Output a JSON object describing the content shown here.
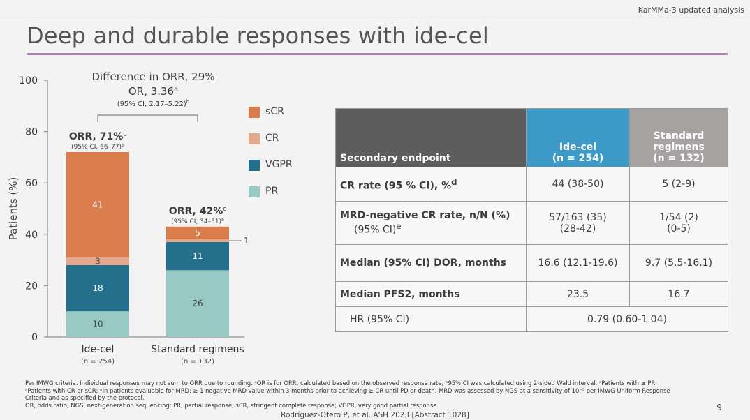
{
  "header": {
    "top_note": "KarMMa-3 updated analysis",
    "title": "Deep and durable responses with ide-cel"
  },
  "chart_data": {
    "type": "bar",
    "stacked": true,
    "categories": [
      "Ide-cel",
      "Standard regimens"
    ],
    "category_sublabels": [
      "(n = 254)",
      "(n = 132)"
    ],
    "series": [
      {
        "name": "PR",
        "values": [
          10,
          26
        ],
        "color": "#98c9c4"
      },
      {
        "name": "VGPR",
        "values": [
          18,
          11
        ],
        "color": "#236f8c"
      },
      {
        "name": "CR",
        "values": [
          3,
          1
        ],
        "color": "#e6a88b"
      },
      {
        "name": "sCR",
        "values": [
          41,
          5
        ],
        "color": "#d97d4c"
      }
    ],
    "legend_order": [
      "sCR",
      "CR",
      "VGPR",
      "PR"
    ],
    "legend_placement": "right",
    "totals": [
      72,
      43
    ],
    "ylabel": "Patients (%)",
    "ylim": [
      0,
      100
    ],
    "yticks": [
      0,
      20,
      40,
      60,
      80,
      100
    ],
    "grid": false,
    "bar_labels": [
      {
        "main": "ORR, 71%",
        "sup": "c",
        "ci": "(95% CI, 66–77)",
        "ci_sup": "b"
      },
      {
        "main": "ORR, 42%",
        "sup": "c",
        "ci": "(95% CI, 34–51)",
        "ci_sup": "b"
      }
    ],
    "comparison": {
      "line1": "Difference in ORR, 29%",
      "line2": "OR, 3.36",
      "line2_sup": "a",
      "line3": "(95% CI, 2.17–5.22)",
      "line3_sup": "b"
    }
  },
  "table": {
    "headers": [
      "Secondary endpoint",
      "Ide-cel",
      "(n = 254)",
      "Standard",
      "regimens",
      "(n = 132)"
    ],
    "rows": [
      {
        "label": "CR rate (95 % CI), %",
        "label_sup": "d",
        "sub": "",
        "sub_sup": "",
        "ide": [
          "44 (38-50)"
        ],
        "std": [
          "5 (2-9)"
        ]
      },
      {
        "label": "MRD-negative CR rate, n/N (%)",
        "label_sup": "",
        "sub": "(95% CI)",
        "sub_sup": "e",
        "ide": [
          "57/163 (35)",
          "(28-42)"
        ],
        "std": [
          "1/54 (2)",
          "(0-5)"
        ]
      },
      {
        "label": "Median (95% CI) DOR, months",
        "label_sup": "",
        "sub": "",
        "sub_sup": "",
        "ide": [
          "16.6 (12.1-19.6)"
        ],
        "std": [
          "9.7 (5.5-16.1)"
        ]
      },
      {
        "label": "Median PFS2, months",
        "label_sup": "",
        "sub": "",
        "sub_sup": "",
        "ide": [
          "23.5"
        ],
        "std": [
          "16.7"
        ]
      }
    ],
    "hr_label": "HR (95% CI)",
    "hr_value": "0.79 (0.60-1.04)"
  },
  "footnotes": [
    "Per IMWG criteria. Individual responses may not sum to ORR due to rounding. ᵃOR is for ORR, calculated based on the observed response rate; ᵇ95% CI was calculated using 2-sided Wald interval; ᶜPatients with ≥ PR;",
    "ᵈPatients with CR or sCR; ᵉIn patients evaluable for MRD; ≥ 1 negative MRD value within 3 months prior to achieving ≥ CR until PD or death. MRD was assessed by NGS at a sensitivity of 10⁻⁵ per IMWG Uniform Response",
    "Criteria and as specified by the protocol.",
    "OR, odds ratio; NGS, next-generation sequencing; PR, partial response; sCR, stringent complete response; VGPR, very good partial response."
  ],
  "citation": "Rodríguez-Otero P, et al. ASH 2023 [Abstract 1028]",
  "page_number": "9"
}
